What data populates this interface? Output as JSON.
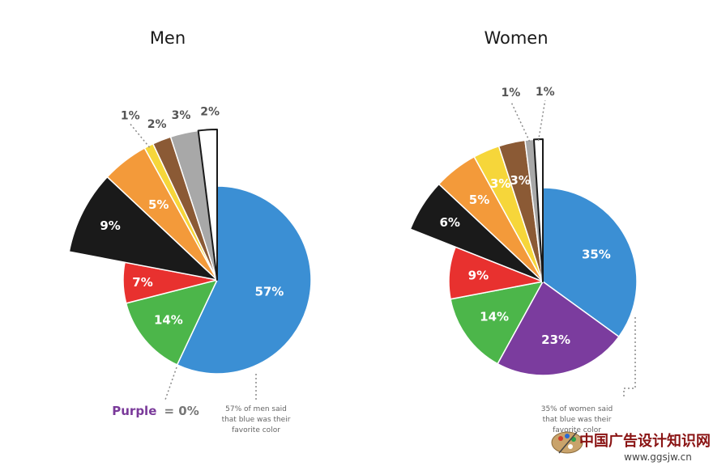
{
  "chart_data": [
    {
      "type": "pie",
      "title": "Men",
      "slices": [
        {
          "label": "57%",
          "value": 57,
          "color": "#3b8fd4"
        },
        {
          "label": "14%",
          "value": 14,
          "color": "#4cb64a"
        },
        {
          "label": "7%",
          "value": 7,
          "color": "#e8312f"
        },
        {
          "label": "9%",
          "value": 9,
          "color": "#1a1a1a"
        },
        {
          "label": "5%",
          "value": 5,
          "color": "#f39a3a"
        },
        {
          "label": "1%",
          "value": 1,
          "color": "#f6d63a"
        },
        {
          "label": "2%",
          "value": 2,
          "color": "#8b5a35"
        },
        {
          "label": "3%",
          "value": 3,
          "color": "#a8a8a8"
        },
        {
          "label": "2%",
          "value": 2,
          "color": "#ffffff"
        }
      ],
      "annotation": "57% of men said that blue was their favorite color",
      "annotation_lines": [
        "57% of men said",
        "that blue was their",
        "favorite color"
      ],
      "purple_note": {
        "word": "Purple",
        "rest": "= 0%",
        "color": "#7a3a9a"
      }
    },
    {
      "type": "pie",
      "title": "Women",
      "slices": [
        {
          "label": "35%",
          "value": 35,
          "color": "#3b8fd4"
        },
        {
          "label": "23%",
          "value": 23,
          "color": "#7b3c9e"
        },
        {
          "label": "14%",
          "value": 14,
          "color": "#4cb64a"
        },
        {
          "label": "9%",
          "value": 9,
          "color": "#e8312f"
        },
        {
          "label": "6%",
          "value": 6,
          "color": "#1a1a1a"
        },
        {
          "label": "5%",
          "value": 5,
          "color": "#f39a3a"
        },
        {
          "label": "3%",
          "value": 3,
          "color": "#f6d63a"
        },
        {
          "label": "3%",
          "value": 3,
          "color": "#8b5a35"
        },
        {
          "label": "1%",
          "value": 1,
          "color": "#a8a8a8"
        },
        {
          "label": "1%",
          "value": 1,
          "color": "#ffffff"
        }
      ],
      "annotation": "35% of women said that blue was their favorite color",
      "annotation_lines": [
        "35% of women said",
        "that blue was their",
        "favorite color"
      ]
    }
  ],
  "watermark": {
    "chinese": "中国广告设计知识网",
    "url": "www.ggsjw.cn"
  }
}
